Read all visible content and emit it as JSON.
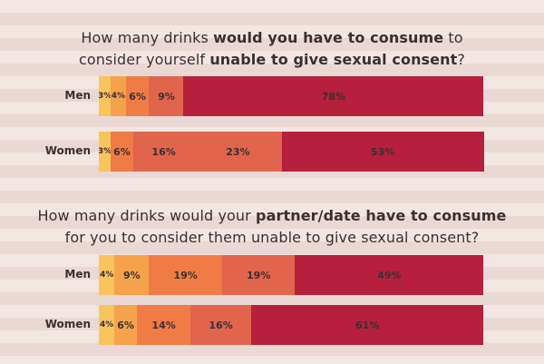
{
  "colors": [
    "#f8c55d",
    "#f6a24c",
    "#f07c45",
    "#e0654c",
    "#b7203d"
  ],
  "chart_data": [
    {
      "type": "bar",
      "orientation": "horizontal",
      "stacked": true,
      "title_parts": [
        {
          "text": "How many drinks ",
          "bold": false
        },
        {
          "text": "would you have to consume",
          "bold": true
        },
        {
          "text": " to",
          "bold": false
        },
        {
          "text": "\n",
          "bold": false
        },
        {
          "text": "consider yourself ",
          "bold": false
        },
        {
          "text": "unable to give sexual consent",
          "bold": true
        },
        {
          "text": "?",
          "bold": false
        }
      ],
      "categories": [
        "Men",
        "Women"
      ],
      "series": [
        {
          "values": [
            3,
            3
          ]
        },
        {
          "values": [
            4,
            null
          ]
        },
        {
          "values": [
            6,
            6
          ]
        },
        {
          "values": [
            9,
            16
          ]
        },
        {
          "values": [
            null,
            23
          ]
        },
        {
          "values": [
            78,
            53
          ]
        }
      ],
      "series_colors": [
        "#f8c55d",
        "#f6a24c",
        "#f07c45",
        "#e0654c",
        "#e0654c",
        "#b7203d"
      ],
      "data_labels": [
        [
          "3%",
          "4%",
          "6%",
          "9%",
          "",
          "78%"
        ],
        [
          "3%",
          "",
          "6%",
          "16%",
          "23%",
          "53%"
        ]
      ]
    },
    {
      "type": "bar",
      "orientation": "horizontal",
      "stacked": true,
      "title_parts": [
        {
          "text": "How many drinks would your ",
          "bold": false
        },
        {
          "text": "partner/date have to consume",
          "bold": true
        },
        {
          "text": "\n",
          "bold": false
        },
        {
          "text": "for you to consider them unable to give sexual consent?",
          "bold": false
        }
      ],
      "categories": [
        "Men",
        "Women"
      ],
      "series": [
        {
          "values": [
            4,
            4
          ]
        },
        {
          "values": [
            9,
            6
          ]
        },
        {
          "values": [
            19,
            14
          ]
        },
        {
          "values": [
            19,
            16
          ]
        },
        {
          "values": [
            49,
            61
          ]
        }
      ],
      "series_colors": [
        "#f8c55d",
        "#f6a24c",
        "#f07c45",
        "#e0654c",
        "#b7203d"
      ],
      "data_labels": [
        [
          "4%",
          "9%",
          "19%",
          "19%",
          "49%"
        ],
        [
          "4%",
          "6%",
          "14%",
          "16%",
          "61%"
        ]
      ]
    }
  ]
}
